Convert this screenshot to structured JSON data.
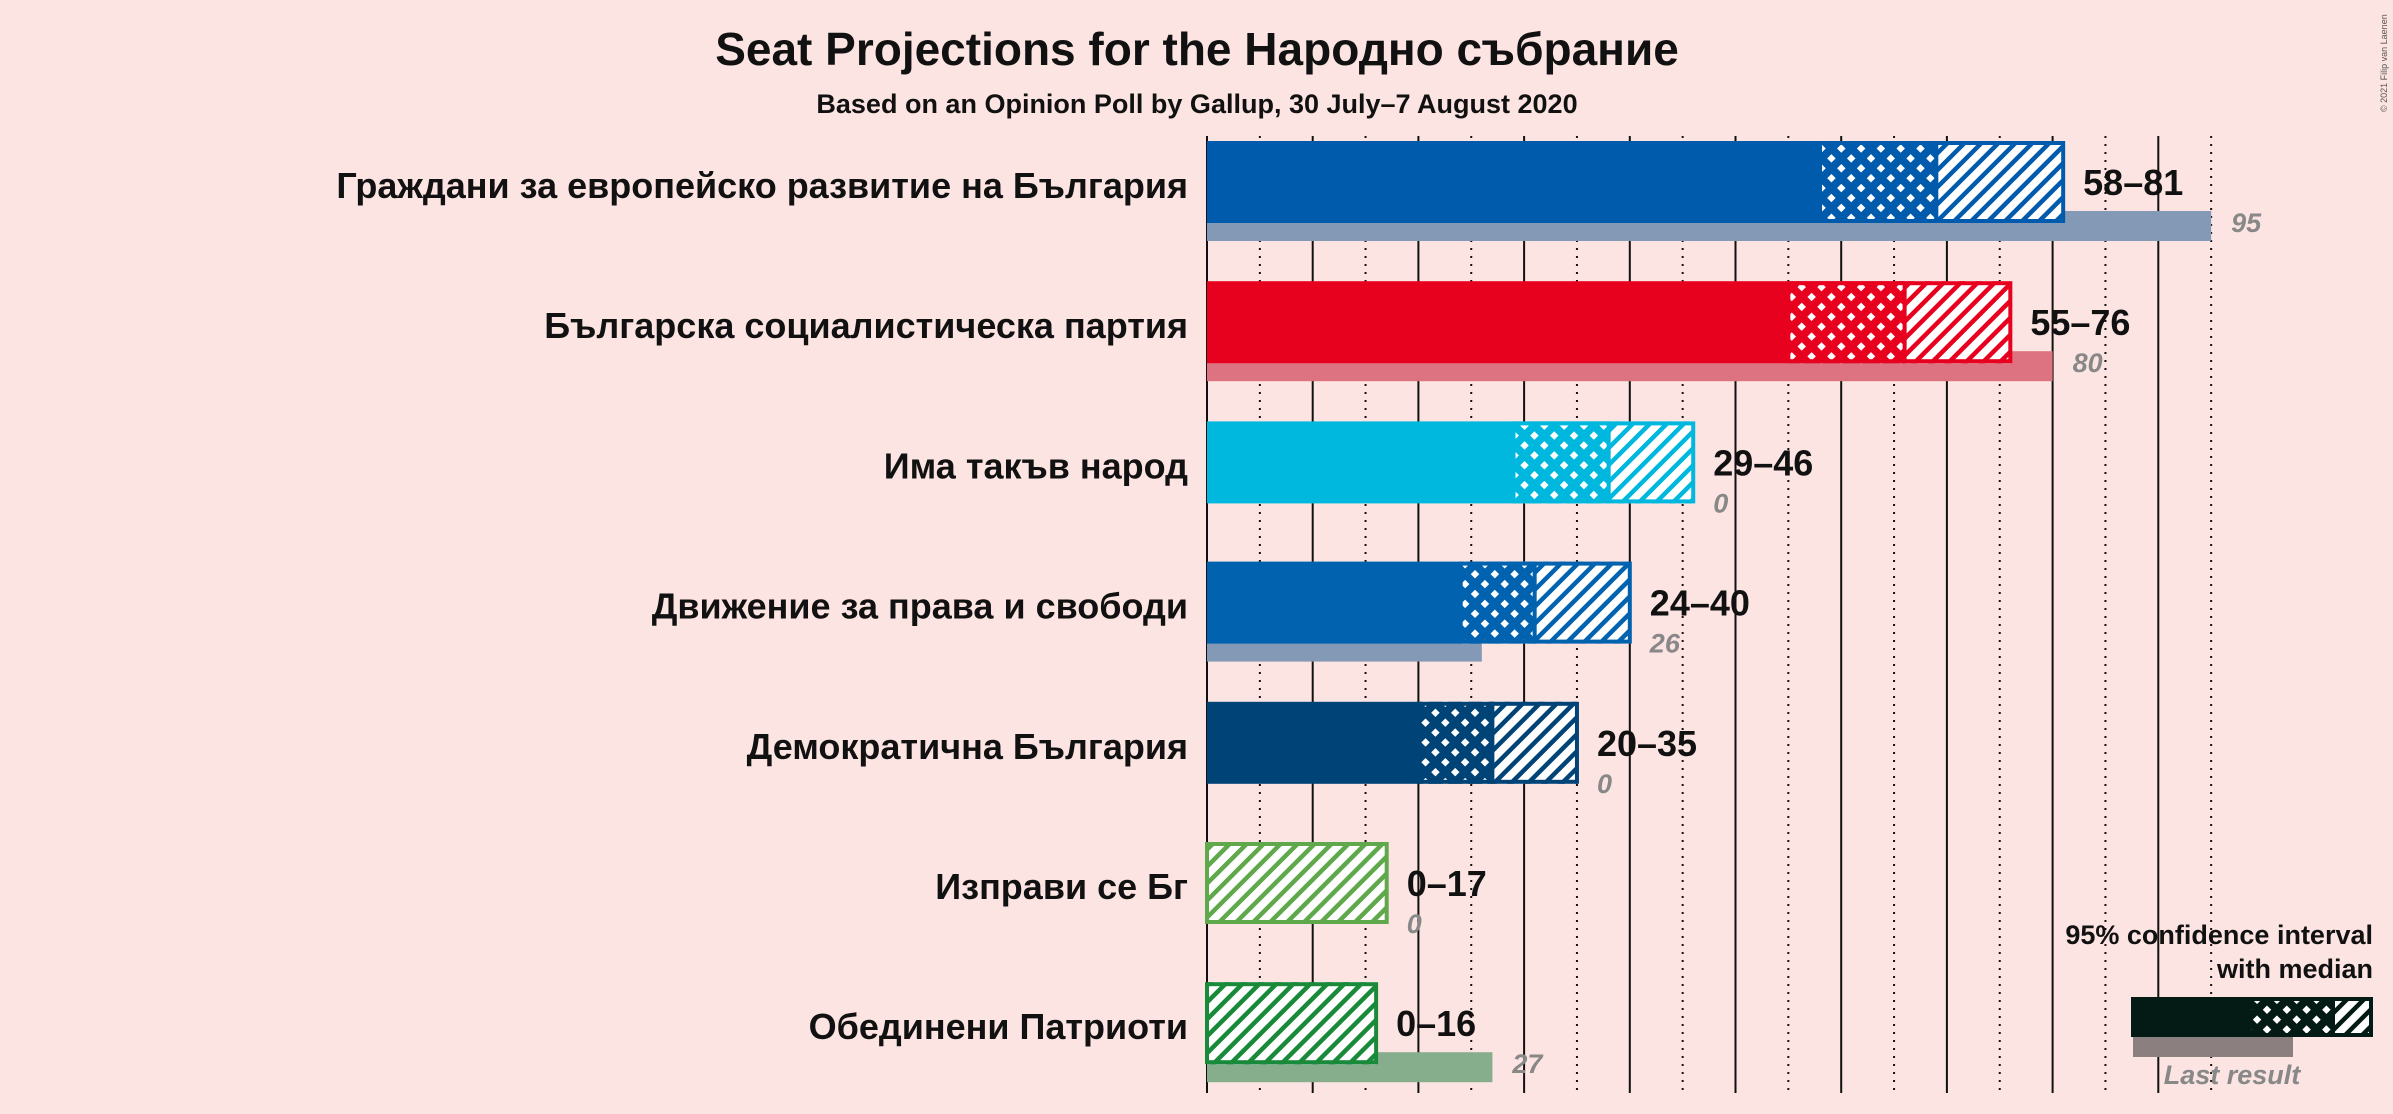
{
  "chart_data": {
    "type": "bar",
    "title": "Seat Projections for the Народно събрание",
    "subtitle": "Based on an Opinion Poll by Gallup, 30 July–7 August 2020",
    "copyright": "© 2021 Filip van Laenen",
    "grid": true,
    "xlim": [
      0,
      95
    ],
    "major_ticks": [
      0,
      10,
      20,
      30,
      40,
      50,
      60,
      70,
      80,
      90
    ],
    "minor_ticks": [
      5,
      15,
      25,
      35,
      45,
      55,
      65,
      75,
      85,
      95
    ],
    "categories": [
      "Граждани за европейско развитие на България",
      "Българска социалистическа партия",
      "Има такъв народ",
      "Движение за права и свободи",
      "Демократична България",
      "Изправи се Бг",
      "Обединени Патриоти"
    ],
    "series": [
      {
        "ci_low": 58,
        "median": 69,
        "ci_high": 81,
        "last_result": 95,
        "range_label": "58–81",
        "last_label": "95",
        "color": "#005BAC",
        "last_color": "#8499B5"
      },
      {
        "ci_low": 55,
        "median": 66,
        "ci_high": 76,
        "last_result": 80,
        "range_label": "55–76",
        "last_label": "80",
        "color": "#E8001F",
        "last_color": "#DD7380"
      },
      {
        "ci_low": 29,
        "median": 38,
        "ci_high": 46,
        "last_result": 0,
        "range_label": "29–46",
        "last_label": "0",
        "color": "#00B8DE",
        "last_color": "#7FCDE0"
      },
      {
        "ci_low": 24,
        "median": 31,
        "ci_high": 40,
        "last_result": 26,
        "range_label": "24–40",
        "last_label": "26",
        "color": "#0162AF",
        "last_color": "#8499B5"
      },
      {
        "ci_low": 20,
        "median": 27,
        "ci_high": 35,
        "last_result": 0,
        "range_label": "20–35",
        "last_label": "0",
        "color": "#004377",
        "last_color": "#7F9AB0"
      },
      {
        "ci_low": 0,
        "median": 0,
        "ci_high": 17,
        "last_result": 0,
        "range_label": "0–17",
        "last_label": "0",
        "color": "#5FA84B",
        "last_color": "#9EC596"
      },
      {
        "ci_low": 0,
        "median": 0,
        "ci_high": 16,
        "last_result": 27,
        "range_label": "0–16",
        "last_label": "27",
        "color": "#198A3A",
        "last_color": "#86AE8D"
      }
    ],
    "legend": {
      "line1": "95% confidence interval",
      "line2": "with median",
      "last_result_label": "Last result",
      "position": "bottom-right",
      "color": "#041A14",
      "last_color": "#8C7F7F"
    }
  }
}
